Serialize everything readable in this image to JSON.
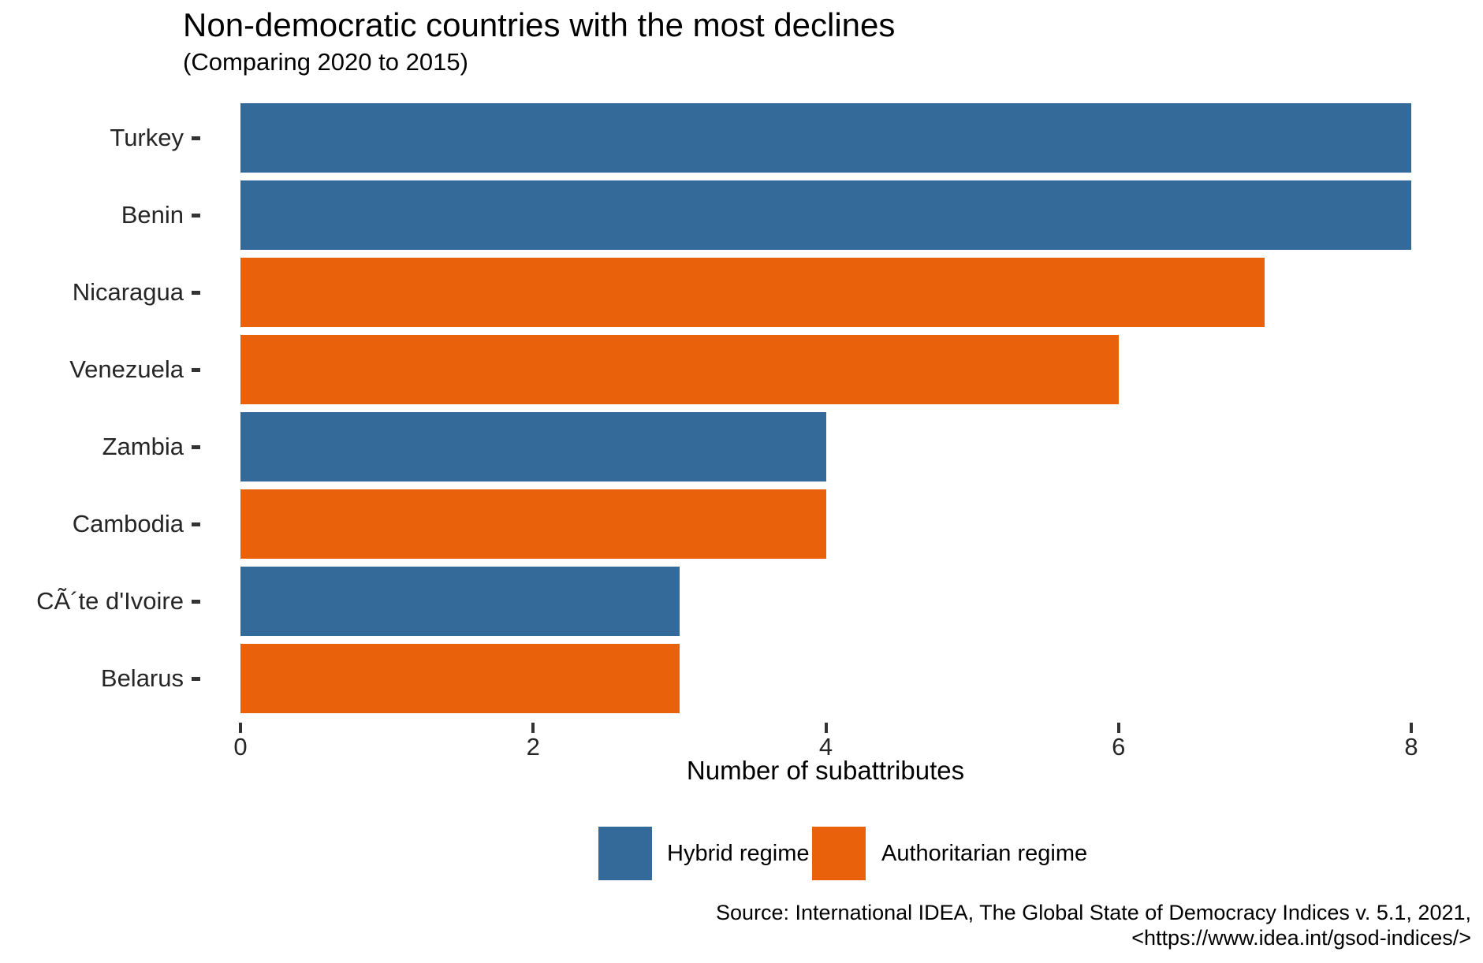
{
  "chart_data": {
    "type": "bar",
    "orientation": "horizontal",
    "title": "Non-democratic countries with the most declines",
    "subtitle": "(Comparing 2020 to 2015)",
    "xlabel": "Number of subattributes",
    "categories": [
      "Turkey",
      "Benin",
      "Nicaragua",
      "Venezuela",
      "Zambia",
      "Cambodia",
      "CÃ´te d'Ivoire",
      "Belarus"
    ],
    "values": [
      8,
      8,
      7,
      6,
      4,
      4,
      3,
      3
    ],
    "groups": [
      "hybrid",
      "hybrid",
      "authoritarian",
      "authoritarian",
      "hybrid",
      "authoritarian",
      "hybrid",
      "authoritarian"
    ],
    "x_ticks": [
      0,
      2,
      4,
      6,
      8
    ],
    "xlim": [
      0,
      8
    ],
    "grid": false,
    "background": "#ffffff",
    "legend": {
      "position": "bottom",
      "entries": [
        {
          "key": "hybrid",
          "label": "Hybrid regime",
          "color": "#346a99"
        },
        {
          "key": "authoritarian",
          "label": "Authoritarian regime",
          "color": "#ea610b"
        }
      ]
    }
  },
  "source": {
    "line1": "Source: International IDEA, The Global State of Democracy Indices v. 5.1, 2021,",
    "line2": "<https://www.idea.int/gsod-indices/>"
  }
}
